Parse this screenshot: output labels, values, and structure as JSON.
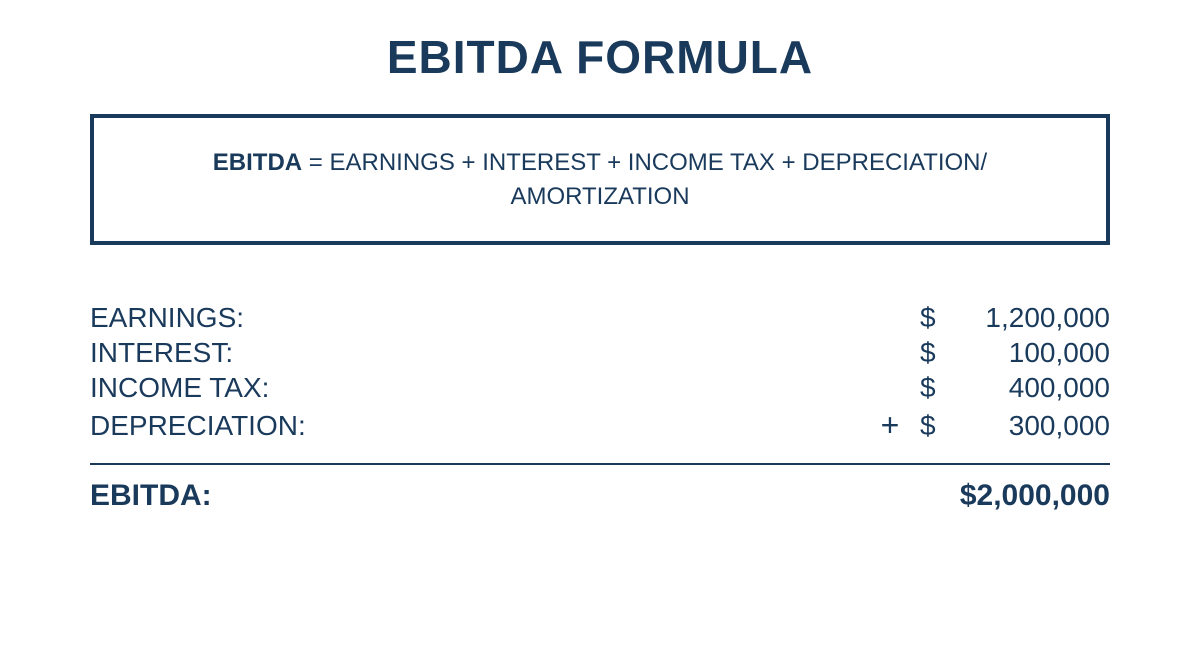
{
  "title": "EBITDA FORMULA",
  "formula": {
    "lhs": "EBITDA",
    "rhs": " = EARNINGS + INTEREST + INCOME TAX + DEPRECIATION/ AMORTIZATION"
  },
  "rows": [
    {
      "label": "EARNINGS:",
      "currency": "$",
      "amount": "1,200,000",
      "plus": ""
    },
    {
      "label": "INTEREST:",
      "currency": "$",
      "amount": "100,000",
      "plus": ""
    },
    {
      "label": "INCOME TAX:",
      "currency": "$",
      "amount": "400,000",
      "plus": ""
    },
    {
      "label": "DEPRECIATION:",
      "currency": "$",
      "amount": "300,000",
      "plus": "+"
    }
  ],
  "total": {
    "label": "EBITDA:",
    "value": "$2,000,000"
  },
  "style": {
    "text_color": "#1a3a5c",
    "background_color": "#ffffff",
    "border_color": "#1a3a5c",
    "title_fontsize": 46,
    "formula_fontsize": 24,
    "row_fontsize": 28,
    "total_fontsize": 30,
    "border_width": 4
  }
}
